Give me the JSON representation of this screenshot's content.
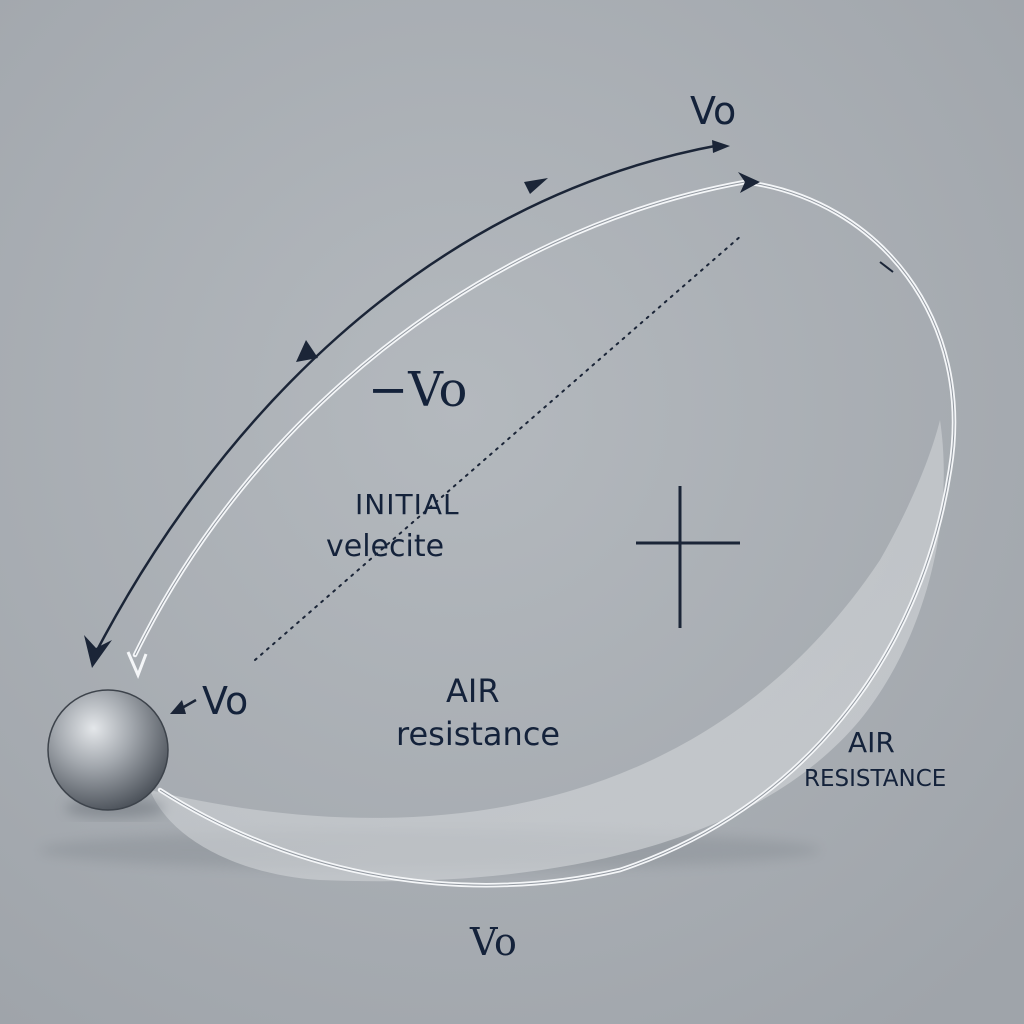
{
  "labels": {
    "vo_top": "Vo",
    "neg_vo": "−Vo",
    "initial_line1": "INITIAL",
    "initial_line2": "velecite",
    "vo_left": "Vo",
    "air_center_line1": "AIR",
    "air_center_line2": "resistance",
    "air_right_line1": "AIR",
    "air_right_line2": "RESISTANCE",
    "vo_bottom": "Vo"
  },
  "colors": {
    "background": "#a9aeb4",
    "ink": "#14223a",
    "trajectory": "#f4f6f8",
    "ball": "#8e9399"
  },
  "icons": {
    "crosshair": "crosshair-icon",
    "ball": "ball-icon"
  }
}
